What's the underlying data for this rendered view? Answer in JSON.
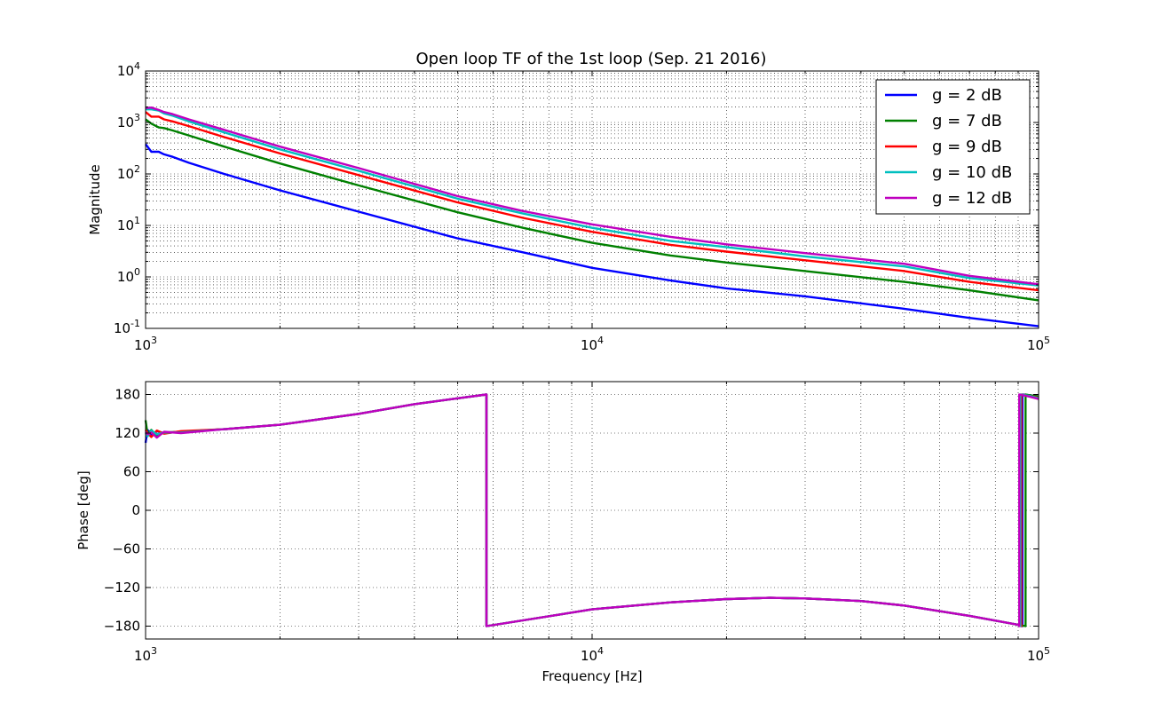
{
  "chart_data": [
    {
      "type": "line",
      "title": "Open loop TF of the 1st loop (Sep. 21 2016)",
      "xlabel": "",
      "ylabel": "Magnitude",
      "xscale": "log",
      "yscale": "log",
      "xlim": [
        1000,
        100000
      ],
      "ylim": [
        0.1,
        10000
      ],
      "xticks": [
        {
          "v": 1000,
          "mant": "10",
          "exp": "3"
        },
        {
          "v": 10000,
          "mant": "10",
          "exp": "4"
        },
        {
          "v": 100000,
          "mant": "10",
          "exp": "5"
        }
      ],
      "yticks": [
        {
          "v": 0.1,
          "mant": "10",
          "exp": "-1"
        },
        {
          "v": 1,
          "mant": "10",
          "exp": "0"
        },
        {
          "v": 10,
          "mant": "10",
          "exp": "1"
        },
        {
          "v": 100,
          "mant": "10",
          "exp": "2"
        },
        {
          "v": 1000,
          "mant": "10",
          "exp": "3"
        },
        {
          "v": 10000,
          "mant": "10",
          "exp": "4"
        }
      ],
      "grid": true,
      "legend": "top-right",
      "series": [
        {
          "name": "g = 2 dB",
          "color": "#0000ff",
          "x": [
            1000,
            1030,
            1070,
            1100,
            1150,
            1250,
            1500,
            2000,
            3000,
            5000,
            7000,
            10000,
            15000,
            20000,
            30000,
            50000,
            70000,
            100000
          ],
          "y": [
            380,
            270,
            270,
            240,
            215,
            165,
            100,
            48,
            18.5,
            5.6,
            3.0,
            1.5,
            0.85,
            0.6,
            0.42,
            0.24,
            0.16,
            0.11
          ]
        },
        {
          "name": "g = 7 dB",
          "color": "#008000",
          "x": [
            1000,
            1030,
            1070,
            1100,
            1150,
            1250,
            1500,
            2000,
            3000,
            5000,
            7000,
            10000,
            15000,
            20000,
            30000,
            50000,
            70000,
            100000
          ],
          "y": [
            1150,
            950,
            800,
            780,
            700,
            560,
            340,
            160,
            60,
            18,
            9.0,
            4.6,
            2.6,
            1.9,
            1.3,
            0.8,
            0.55,
            0.35
          ]
        },
        {
          "name": "g = 9 dB",
          "color": "#ff0000",
          "x": [
            1000,
            1030,
            1070,
            1100,
            1150,
            1250,
            1500,
            2000,
            3000,
            5000,
            7000,
            10000,
            15000,
            20000,
            30000,
            50000,
            70000,
            100000
          ],
          "y": [
            1600,
            1300,
            1300,
            1150,
            1050,
            850,
            520,
            250,
            95,
            28,
            14,
            7.5,
            4.2,
            3.1,
            2.1,
            1.3,
            0.8,
            0.55
          ]
        },
        {
          "name": "g = 10 dB",
          "color": "#00bfbf",
          "x": [
            1000,
            1030,
            1070,
            1100,
            1150,
            1250,
            1500,
            2000,
            3000,
            5000,
            7000,
            10000,
            15000,
            20000,
            30000,
            50000,
            70000,
            100000
          ],
          "y": [
            1800,
            1800,
            1700,
            1500,
            1350,
            1050,
            640,
            300,
            115,
            33,
            17,
            9.0,
            5.0,
            3.8,
            2.5,
            1.6,
            0.95,
            0.68
          ]
        },
        {
          "name": "g = 12 dB",
          "color": "#bf00bf",
          "x": [
            1000,
            1030,
            1070,
            1100,
            1150,
            1250,
            1500,
            2000,
            3000,
            5000,
            7000,
            10000,
            15000,
            20000,
            30000,
            50000,
            70000,
            100000
          ],
          "y": [
            1900,
            1950,
            1750,
            1600,
            1450,
            1150,
            720,
            340,
            130,
            37,
            19,
            10.5,
            6.0,
            4.3,
            2.9,
            1.8,
            1.05,
            0.72
          ]
        }
      ]
    },
    {
      "type": "line",
      "title": "",
      "xlabel": "Frequency [Hz]",
      "ylabel": "Phase [deg]",
      "xscale": "log",
      "xlim": [
        1000,
        100000
      ],
      "ylim": [
        -200,
        200
      ],
      "xticks": [
        {
          "v": 1000,
          "mant": "10",
          "exp": "3"
        },
        {
          "v": 10000,
          "mant": "10",
          "exp": "4"
        },
        {
          "v": 100000,
          "mant": "10",
          "exp": "5"
        }
      ],
      "yticks": [
        {
          "v": 180,
          "label": "180"
        },
        {
          "v": 120,
          "label": "120"
        },
        {
          "v": 60,
          "label": "60"
        },
        {
          "v": 0,
          "label": "0"
        },
        {
          "v": -60,
          "label": "−60"
        },
        {
          "v": -120,
          "label": "−120"
        },
        {
          "v": -180,
          "label": "−180"
        }
      ],
      "grid": true,
      "series": [
        {
          "name": "g = 2 dB",
          "color": "#0000ff",
          "x": [
            1000,
            1010,
            1030,
            1060,
            1100,
            1200,
            1500,
            2000,
            3000,
            4000,
            5000,
            5800,
            5800,
            7000,
            10000,
            15000,
            20000,
            25000,
            30000,
            40000,
            50000,
            70000,
            90000,
            92000,
            92000,
            95000,
            100000
          ],
          "y": [
            105,
            125,
            118,
            123,
            120,
            122,
            126,
            133,
            150,
            165,
            174,
            180,
            -180,
            -171,
            -154,
            -143,
            -138,
            -136,
            -137,
            -141,
            -148,
            -164,
            -178,
            -180,
            180,
            179,
            177
          ]
        },
        {
          "name": "g = 7 dB",
          "color": "#008000",
          "x": [
            1000,
            1010,
            1030,
            1060,
            1100,
            1200,
            1500,
            2000,
            3000,
            4000,
            5000,
            5800,
            5800,
            7000,
            10000,
            15000,
            20000,
            25000,
            30000,
            40000,
            50000,
            70000,
            90000,
            93500,
            93500,
            95000,
            100000
          ],
          "y": [
            140,
            118,
            125,
            116,
            121,
            122,
            126,
            133,
            150,
            165,
            174,
            180,
            -180,
            -171,
            -154,
            -143,
            -138,
            -136,
            -137,
            -141,
            -148,
            -164,
            -178,
            -180,
            180,
            179,
            177
          ]
        },
        {
          "name": "g = 9 dB",
          "color": "#ff0000",
          "x": [
            1000,
            1010,
            1030,
            1060,
            1100,
            1200,
            1500,
            2000,
            3000,
            4000,
            5000,
            5800,
            5800,
            7000,
            10000,
            15000,
            20000,
            25000,
            30000,
            40000,
            50000,
            70000,
            90000,
            91500,
            91500,
            95000,
            100000
          ],
          "y": [
            125,
            120,
            114,
            124,
            119,
            123,
            126,
            133,
            150,
            165,
            174,
            180,
            -180,
            -171,
            -154,
            -143,
            -138,
            -136,
            -137,
            -141,
            -148,
            -164,
            -178,
            -180,
            180,
            178,
            175
          ]
        },
        {
          "name": "g = 10 dB",
          "color": "#00bfbf",
          "x": [
            1000,
            1010,
            1030,
            1060,
            1100,
            1200,
            1500,
            2000,
            3000,
            4000,
            5000,
            5800,
            5800,
            7000,
            10000,
            15000,
            20000,
            25000,
            30000,
            40000,
            50000,
            70000,
            90000,
            91000,
            91000,
            95000,
            100000
          ],
          "y": [
            120,
            115,
            124,
            118,
            121,
            121,
            126,
            133,
            150,
            165,
            174,
            180,
            -180,
            -171,
            -154,
            -143,
            -138,
            -136,
            -137,
            -141,
            -148,
            -164,
            -178,
            -180,
            180,
            178,
            174
          ]
        },
        {
          "name": "g = 12 dB",
          "color": "#bf00bf",
          "x": [
            1000,
            1010,
            1030,
            1060,
            1100,
            1200,
            1500,
            2000,
            3000,
            4000,
            5000,
            5800,
            5800,
            7000,
            10000,
            15000,
            20000,
            25000,
            30000,
            40000,
            50000,
            70000,
            90000,
            90500,
            90500,
            95000,
            100000
          ],
          "y": [
            122,
            118,
            121,
            113,
            122,
            120,
            126,
            133,
            150,
            165,
            174,
            180,
            -180,
            -171,
            -154,
            -143,
            -138,
            -136,
            -137,
            -141,
            -148,
            -164,
            -178,
            -180,
            180,
            177,
            173
          ]
        }
      ]
    }
  ]
}
